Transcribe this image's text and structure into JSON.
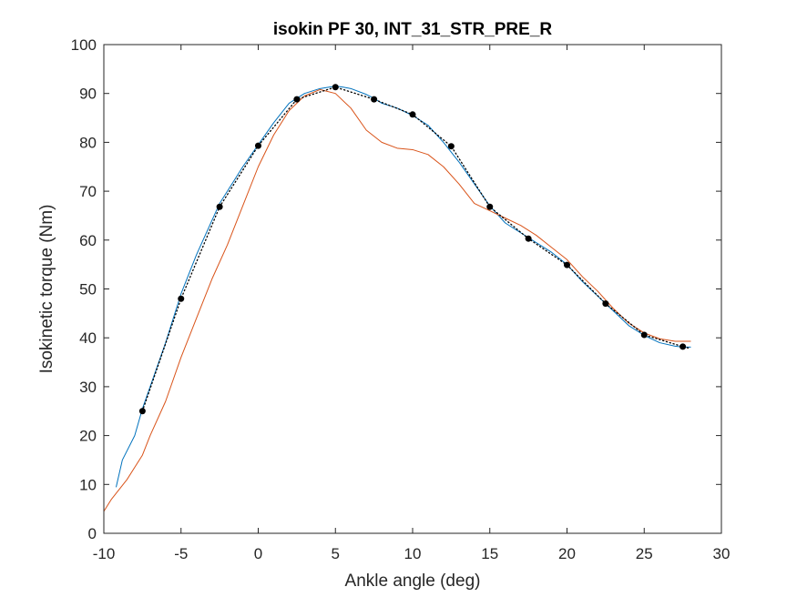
{
  "chart_data": {
    "type": "line",
    "title": "isokin PF 30, INT_31_STR_PRE_R",
    "xlabel": "Ankle angle (deg)",
    "ylabel": "Isokinetic torque (Nm)",
    "xlim": [
      -10,
      30
    ],
    "ylim": [
      0,
      100
    ],
    "xticks": [
      -10,
      -5,
      0,
      5,
      10,
      15,
      20,
      25,
      30
    ],
    "yticks": [
      0,
      10,
      20,
      30,
      40,
      50,
      60,
      70,
      80,
      90,
      100
    ],
    "xtick_labels": [
      "-10",
      "-5",
      "0",
      "5",
      "10",
      "15",
      "20",
      "25",
      "30"
    ],
    "ytick_labels": [
      "0",
      "10",
      "20",
      "30",
      "40",
      "50",
      "60",
      "70",
      "80",
      "90",
      "100"
    ],
    "grid": false,
    "legend": "none",
    "series": [
      {
        "style": "solid",
        "color": "#0072BD",
        "x": [
          -9.2,
          -8.8,
          -8,
          -7.5,
          -7,
          -6,
          -5,
          -4,
          -3,
          -2.5,
          -2,
          -1,
          0,
          1,
          2,
          2.5,
          3,
          4,
          5,
          5.5,
          6,
          7,
          7.5,
          8,
          9,
          10,
          11,
          12,
          12.5,
          13,
          14,
          15,
          16,
          17,
          17.5,
          18,
          19,
          20,
          21,
          22,
          22.5,
          23,
          24,
          25,
          26,
          27,
          27.5,
          28
        ],
        "y": [
          9.5,
          15,
          20,
          25.5,
          30,
          39,
          49,
          57,
          64,
          67.5,
          70,
          75,
          79.5,
          84,
          88,
          89,
          90,
          91,
          91.5,
          91.3,
          91,
          89.8,
          89,
          88,
          87,
          85.5,
          83.5,
          80,
          78,
          76,
          71.5,
          67,
          63.5,
          61.5,
          60.5,
          59.5,
          57.5,
          55,
          51.5,
          48.5,
          47,
          45.5,
          42.5,
          40.5,
          39,
          38.3,
          38.1,
          38.1
        ]
      },
      {
        "style": "solid",
        "color": "#D95319",
        "x": [
          -10,
          -9.5,
          -9,
          -8.5,
          -8,
          -7.5,
          -7,
          -6,
          -5,
          -4,
          -3,
          -2,
          -1,
          0,
          1,
          2,
          3,
          4,
          5,
          6,
          7,
          8,
          9,
          10,
          11,
          12,
          13,
          14,
          15,
          16,
          17,
          18,
          19,
          20,
          21,
          22,
          23,
          24,
          25,
          26,
          27,
          28
        ],
        "y": [
          4.5,
          7,
          9,
          11,
          13.5,
          16,
          20,
          27,
          36,
          44,
          52,
          59,
          67,
          75,
          81.5,
          86.5,
          89.5,
          90.8,
          90,
          87,
          82.5,
          80,
          78.8,
          78.5,
          77.5,
          75,
          71.5,
          67.5,
          66,
          64.5,
          63,
          61,
          58.5,
          56,
          52.5,
          49.5,
          46,
          43,
          41,
          39.8,
          39.3,
          39.3
        ]
      },
      {
        "style": "dotted",
        "color": "#000000",
        "x": [
          -7.5,
          -5,
          -2.5,
          0,
          2.5,
          5,
          7.5,
          10,
          12.5,
          15,
          17.5,
          20,
          22.5,
          25,
          27.5,
          28
        ],
        "y": [
          25,
          48,
          66.8,
          79.3,
          88.8,
          91.3,
          88.8,
          85.7,
          79.2,
          66.8,
          60.3,
          54.9,
          47,
          40.6,
          38.2,
          37.8
        ]
      },
      {
        "style": "markers",
        "color": "#000000",
        "x": [
          -7.5,
          -5,
          -2.5,
          0,
          2.5,
          5,
          7.5,
          10,
          12.5,
          15,
          17.5,
          20,
          22.5,
          25,
          27.5
        ],
        "y": [
          25,
          48,
          66.8,
          79.3,
          88.8,
          91.3,
          88.8,
          85.7,
          79.2,
          66.8,
          60.3,
          54.9,
          47,
          40.6,
          38.2
        ]
      }
    ]
  }
}
